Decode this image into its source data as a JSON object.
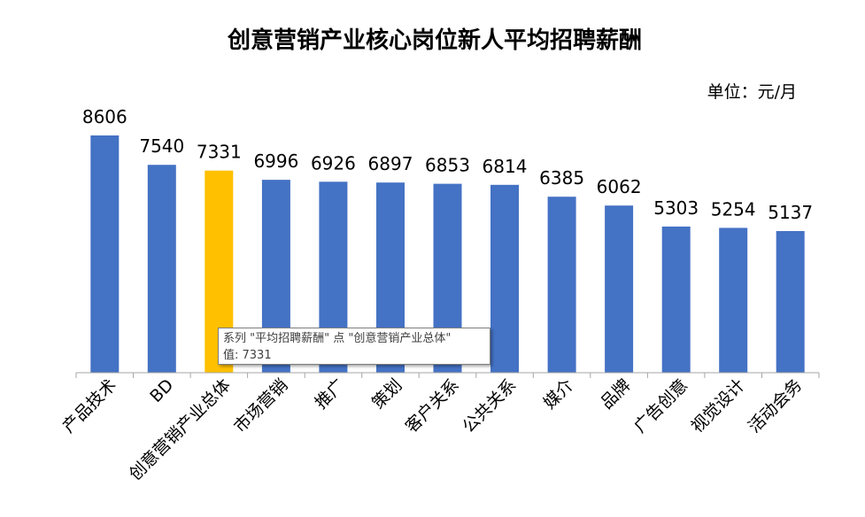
{
  "unit_label": "单位：元/月",
  "tooltip": {
    "line1": "系列 \"平均招聘薪酬\" 点 \"创意营销产业总体\"",
    "line2": "值: 7331"
  },
  "colors": {
    "bar": "#4472C4",
    "highlight": "#FFC000",
    "axis": "#A6A6A6"
  },
  "chart_data": {
    "type": "bar",
    "title": "创意营销产业核心岗位新人平均招聘薪酬",
    "categories": [
      "产品技术",
      "BD",
      "创意营销产业总体",
      "市场营销",
      "推广",
      "策划",
      "客户关系",
      "公共关系",
      "媒介",
      "品牌",
      "广告创意",
      "视觉设计",
      "活动会务"
    ],
    "series": [
      {
        "name": "平均招聘薪酬",
        "values": [
          8606,
          7540,
          7331,
          6996,
          6926,
          6897,
          6853,
          6814,
          6385,
          6062,
          5303,
          5254,
          5137
        ]
      }
    ],
    "highlight_index": 2,
    "ylim": [
      0,
      8606
    ],
    "grid": false,
    "data_labels": true
  }
}
